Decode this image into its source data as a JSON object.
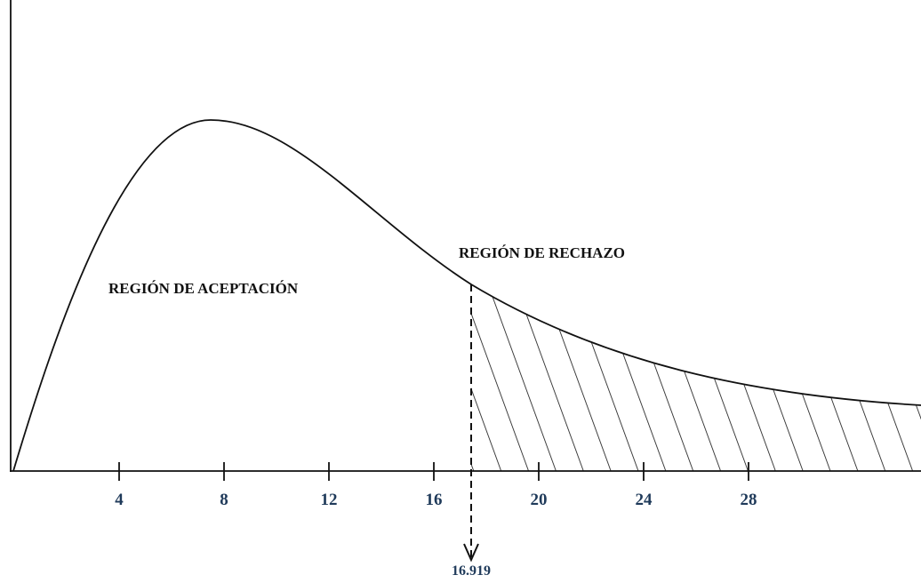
{
  "labels": {
    "acceptance": "REGIÓN DE ACEPTACIÓN",
    "rejection": "REGIÓN DE RECHAZO"
  },
  "axis": {
    "ticks": [
      "4",
      "8",
      "12",
      "16",
      "20",
      "24",
      "28"
    ]
  },
  "critical_value": "16.919"
}
